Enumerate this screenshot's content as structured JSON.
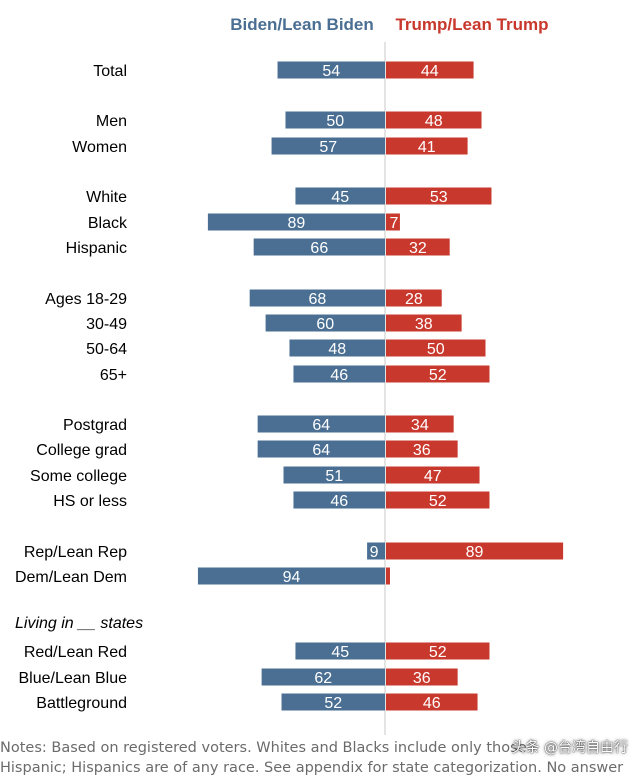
{
  "chart_data": {
    "type": "bar",
    "orientation": "horizontal-diverging",
    "series": [
      {
        "name": "Biden/Lean Biden",
        "color": "#4a6f93",
        "values": [
          54,
          50,
          57,
          45,
          89,
          66,
          68,
          60,
          48,
          46,
          64,
          64,
          51,
          46,
          9,
          94,
          45,
          62,
          52
        ]
      },
      {
        "name": "Trump/Lean Trump",
        "color": "#c8382c",
        "values": [
          44,
          48,
          41,
          53,
          7,
          32,
          28,
          38,
          50,
          52,
          34,
          36,
          47,
          52,
          89,
          2,
          52,
          36,
          46
        ]
      }
    ],
    "categories": [
      "Total",
      "Men",
      "Women",
      "White",
      "Black",
      "Hispanic",
      "Ages 18-29",
      "30-49",
      "50-64",
      "65+",
      "Postgrad",
      "College grad",
      "Some college",
      "HS or less",
      "Rep/Lean Rep",
      "Dem/Lean Dem",
      "Red/Lean Red",
      "Blue/Lean Blue",
      "Battleground"
    ],
    "value_labels": {
      "biden": [
        "54",
        "50",
        "57",
        "45",
        "89",
        "66",
        "68",
        "60",
        "48",
        "46",
        "64",
        "64",
        "51",
        "46",
        "9",
        "94",
        "45",
        "62",
        "52"
      ],
      "trump": [
        "44",
        "48",
        "41",
        "53",
        "7",
        "32",
        "28",
        "38",
        "50",
        "52",
        "34",
        "36",
        "47",
        "52",
        "89",
        "",
        "52",
        "36",
        "46"
      ]
    },
    "section_label": "Living in __ states",
    "legend_position": "top",
    "grid": false
  },
  "notes": {
    "line1": "Notes: Based on registered voters. Whites and Blacks include only those",
    "line2": "Hispanic; Hispanics are of any race. See appendix for state categorization. No answer"
  },
  "watermark": "头条 @台湾自由行"
}
